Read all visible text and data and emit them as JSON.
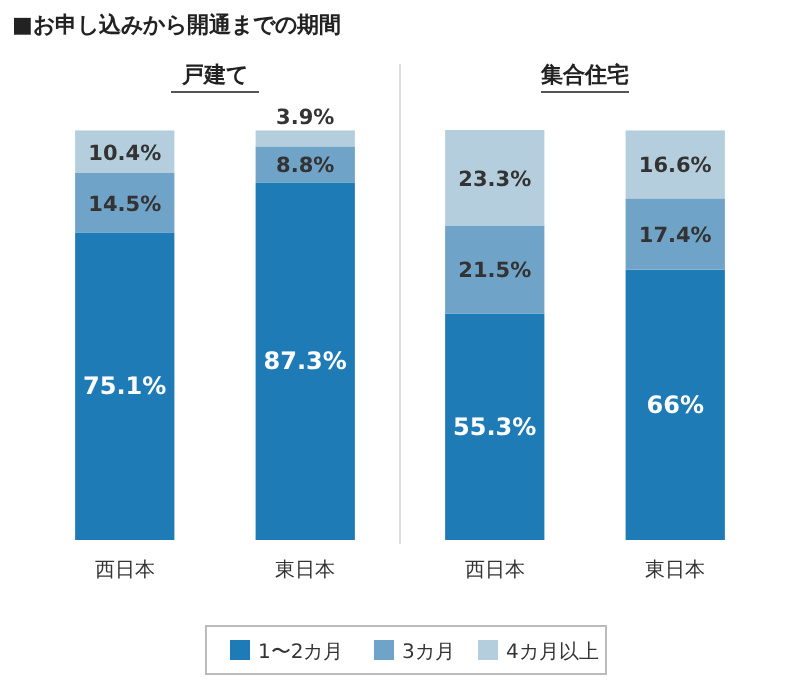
{
  "chart_data": [
    {
      "type": "bar",
      "stacked": true,
      "title": "戸建て",
      "legend": "bottom",
      "annotations": [
        "■お申し込みから開通までの期間"
      ],
      "categories": [
        "西日本",
        "東日本"
      ],
      "data_labels": true,
      "series": [
        {
          "name": "1〜2カ月",
          "color": "#1f7bb5",
          "values": [
            75.1,
            87.3
          ],
          "value_labels": [
            "75.1%",
            "87.3%"
          ]
        },
        {
          "name": "3カ月",
          "color": "#6fa3c7",
          "values": [
            14.5,
            8.8
          ],
          "value_labels": [
            "14.5%",
            "8.8%"
          ]
        },
        {
          "name": "4カ月以上",
          "color": "#b5cedd",
          "values": [
            10.4,
            3.9
          ],
          "value_labels": [
            "10.4%",
            "3.9%"
          ]
        }
      ]
    },
    {
      "type": "bar",
      "stacked": true,
      "title": "集合住宅",
      "categories": [
        "西日本",
        "東日本"
      ],
      "data_labels": true,
      "series": [
        {
          "color": "#1f7bb5",
          "values": [
            55.3,
            66
          ],
          "value_labels": [
            "55.3%",
            "66%"
          ]
        },
        {
          "color": "#6fa3c7",
          "values": [
            21.5,
            17.4
          ],
          "value_labels": [
            "21.5%",
            "17.4%"
          ]
        },
        {
          "color": "#b5cedd",
          "values": [
            23.3,
            16.6
          ],
          "value_labels": [
            "23.3%",
            "16.6%"
          ]
        }
      ]
    }
  ]
}
